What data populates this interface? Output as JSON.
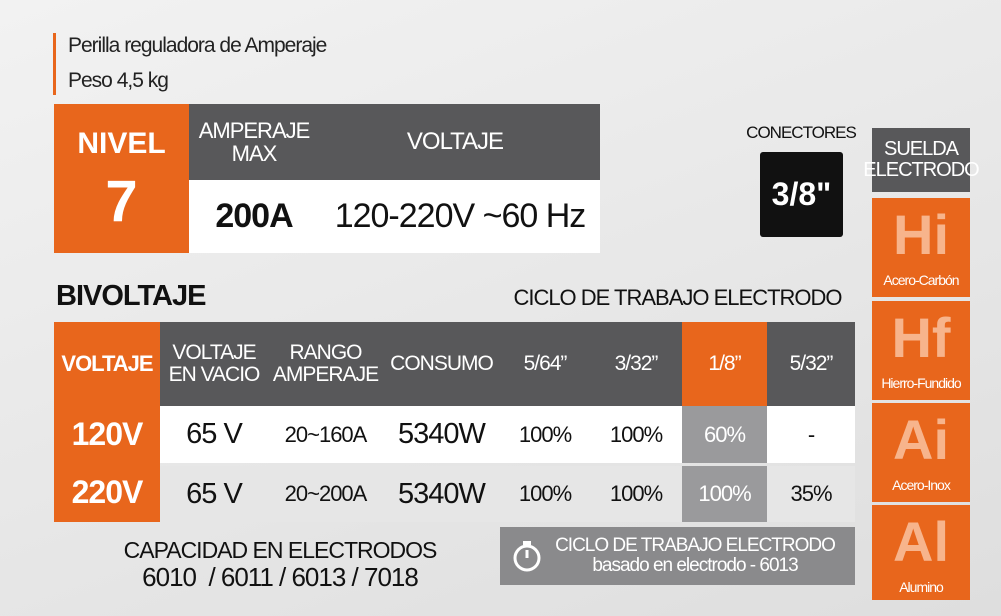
{
  "header": {
    "lines": [
      "Perilla reguladora de Amperaje",
      "Peso 4,5 kg"
    ]
  },
  "level": {
    "label": "NIVEL",
    "value": "7"
  },
  "specs": {
    "headers": [
      "AMPERAJE MAX",
      "VOLTAJE"
    ],
    "values": [
      "200A",
      "120-220V ~60 Hz"
    ]
  },
  "connectors": {
    "label": "CONECTORES",
    "value": "3/8\""
  },
  "section_title": "BIVOLTAJE",
  "duty_cycle_title": "CICLO DE TRABAJO ELECTRODO",
  "table": {
    "headers": [
      "VOLTAJE",
      "VOLTAJE EN VACIO",
      "RANGO AMPERAJE",
      "CONSUMO",
      "5/64”",
      "3/32”",
      "1/8”",
      "5/32”"
    ],
    "rows": [
      [
        "120V",
        "65 V",
        "20~160A",
        "5340W",
        "100%",
        "100%",
        "60%",
        "-"
      ],
      [
        "220V",
        "65 V",
        "20~200A",
        "5340W",
        "100%",
        "100%",
        "100%",
        "35%"
      ]
    ]
  },
  "electrodes": {
    "title": "CAPACIDAD EN ELECTRODOS",
    "list": "6010  / 6011 / 6013 / 7018"
  },
  "note": "CICLO DE TRABAJO ELECTRODO basado en electrodo - 6013",
  "weld": {
    "title": "SUELDA ELECTRODO",
    "items": [
      {
        "symbol": "Hi",
        "name": "Acero-Carbón"
      },
      {
        "symbol": "Hf",
        "name": "Hierro-Fundido"
      },
      {
        "symbol": "Ai",
        "name": "Acero-Inox"
      },
      {
        "symbol": "Al",
        "name": "Alumino"
      }
    ]
  }
}
